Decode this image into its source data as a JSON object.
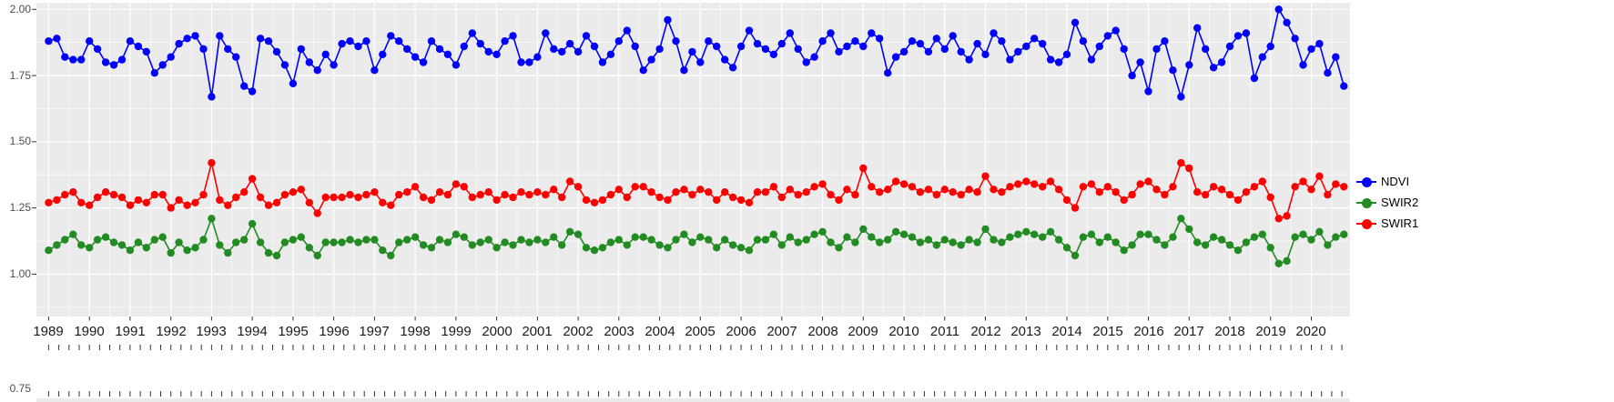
{
  "figure": {
    "background": "#FFFFFF",
    "panel_bg": "#EBEBEB",
    "grid_color": "#FFFFFF",
    "axis_tick_color": "#333333",
    "x_label_color": "#1A1A1A",
    "y_label_color": "#4D4D4D"
  },
  "legend": {
    "items": [
      {
        "label": "NDVI",
        "color": "#0000FF"
      },
      {
        "label": "SWIR2",
        "color": "#228B22"
      },
      {
        "label": "SWIR1",
        "color": "#FF0000"
      }
    ]
  },
  "axes": {
    "y_tick_labels_main": [
      "2.00",
      "1.75",
      "1.50",
      "1.25",
      "1.00"
    ],
    "y_tick_values_main": [
      2.0,
      1.75,
      1.5,
      1.25,
      1.0
    ],
    "y_minor_values_main": [
      1.875,
      1.625,
      1.375,
      1.125,
      0.875
    ],
    "y_tick_label_next_panel": "0.75"
  },
  "chart_data": {
    "type": "line",
    "markers": true,
    "title": "",
    "xlabel": "",
    "ylabel": "",
    "grid": true,
    "legend_position": "right",
    "x_tick_years": [
      1989,
      1990,
      1991,
      1992,
      1993,
      1994,
      1995,
      1996,
      1997,
      1998,
      1999,
      2000,
      2001,
      2002,
      2003,
      2004,
      2005,
      2006,
      2007,
      2008,
      2009,
      2010,
      2011,
      2012,
      2013,
      2014,
      2015,
      2016,
      2017,
      2018,
      2019,
      2020
    ],
    "x": {
      "start": 1989.0,
      "step": 0.2,
      "count": 160,
      "unit": "decimal_year"
    },
    "x_range_shown": [
      1988.7,
      2020.95
    ],
    "y_range_shown": [
      0.84,
      2.025
    ],
    "series": [
      {
        "name": "NDVI",
        "color": "#0000FF",
        "values": [
          1.88,
          1.89,
          1.82,
          1.81,
          1.81,
          1.88,
          1.85,
          1.8,
          1.79,
          1.81,
          1.88,
          1.86,
          1.84,
          1.76,
          1.79,
          1.82,
          1.87,
          1.89,
          1.9,
          1.85,
          1.67,
          1.9,
          1.85,
          1.82,
          1.71,
          1.69,
          1.89,
          1.88,
          1.84,
          1.79,
          1.72,
          1.85,
          1.8,
          1.77,
          1.83,
          1.79,
          1.87,
          1.88,
          1.86,
          1.88,
          1.77,
          1.83,
          1.9,
          1.88,
          1.85,
          1.82,
          1.8,
          1.88,
          1.85,
          1.83,
          1.79,
          1.86,
          1.91,
          1.87,
          1.84,
          1.83,
          1.88,
          1.9,
          1.8,
          1.8,
          1.82,
          1.91,
          1.85,
          1.84,
          1.87,
          1.84,
          1.9,
          1.86,
          1.8,
          1.83,
          1.88,
          1.92,
          1.86,
          1.77,
          1.81,
          1.85,
          1.96,
          1.88,
          1.77,
          1.84,
          1.8,
          1.88,
          1.86,
          1.81,
          1.78,
          1.86,
          1.92,
          1.87,
          1.85,
          1.83,
          1.87,
          1.91,
          1.85,
          1.8,
          1.82,
          1.88,
          1.91,
          1.84,
          1.86,
          1.88,
          1.86,
          1.91,
          1.89,
          1.76,
          1.82,
          1.84,
          1.88,
          1.87,
          1.84,
          1.89,
          1.85,
          1.9,
          1.84,
          1.81,
          1.87,
          1.83,
          1.91,
          1.88,
          1.81,
          1.84,
          1.86,
          1.89,
          1.87,
          1.81,
          1.8,
          1.83,
          1.95,
          1.88,
          1.81,
          1.86,
          1.9,
          1.92,
          1.85,
          1.75,
          1.8,
          1.69,
          1.85,
          1.88,
          1.77,
          1.67,
          1.79,
          1.93,
          1.85,
          1.78,
          1.8,
          1.86,
          1.9,
          1.91,
          1.74,
          1.82,
          1.86,
          2.0,
          1.95,
          1.89,
          1.79,
          1.85,
          1.87,
          1.76,
          1.82,
          1.71
        ]
      },
      {
        "name": "SWIR2",
        "color": "#228B22",
        "values": [
          1.09,
          1.11,
          1.13,
          1.15,
          1.11,
          1.1,
          1.13,
          1.14,
          1.12,
          1.11,
          1.09,
          1.12,
          1.1,
          1.13,
          1.14,
          1.08,
          1.12,
          1.09,
          1.1,
          1.13,
          1.21,
          1.11,
          1.08,
          1.12,
          1.13,
          1.19,
          1.12,
          1.08,
          1.07,
          1.12,
          1.13,
          1.14,
          1.1,
          1.07,
          1.12,
          1.12,
          1.12,
          1.13,
          1.12,
          1.13,
          1.13,
          1.09,
          1.07,
          1.12,
          1.13,
          1.14,
          1.11,
          1.1,
          1.13,
          1.12,
          1.15,
          1.14,
          1.11,
          1.12,
          1.13,
          1.1,
          1.12,
          1.11,
          1.13,
          1.12,
          1.13,
          1.12,
          1.14,
          1.11,
          1.16,
          1.15,
          1.1,
          1.09,
          1.1,
          1.12,
          1.13,
          1.11,
          1.14,
          1.14,
          1.13,
          1.11,
          1.1,
          1.13,
          1.15,
          1.12,
          1.14,
          1.13,
          1.1,
          1.13,
          1.11,
          1.1,
          1.09,
          1.13,
          1.13,
          1.15,
          1.11,
          1.14,
          1.12,
          1.13,
          1.15,
          1.16,
          1.12,
          1.1,
          1.14,
          1.12,
          1.17,
          1.14,
          1.12,
          1.13,
          1.16,
          1.15,
          1.14,
          1.12,
          1.13,
          1.11,
          1.13,
          1.12,
          1.11,
          1.13,
          1.12,
          1.17,
          1.13,
          1.12,
          1.14,
          1.15,
          1.16,
          1.15,
          1.14,
          1.16,
          1.13,
          1.1,
          1.07,
          1.14,
          1.15,
          1.12,
          1.14,
          1.12,
          1.09,
          1.11,
          1.15,
          1.15,
          1.13,
          1.11,
          1.14,
          1.21,
          1.17,
          1.12,
          1.11,
          1.14,
          1.13,
          1.11,
          1.09,
          1.12,
          1.14,
          1.15,
          1.1,
          1.04,
          1.05,
          1.14,
          1.15,
          1.13,
          1.16,
          1.11,
          1.14,
          1.15
        ]
      },
      {
        "name": "SWIR1",
        "color": "#FF0000",
        "values": [
          1.27,
          1.28,
          1.3,
          1.31,
          1.27,
          1.26,
          1.29,
          1.31,
          1.3,
          1.29,
          1.26,
          1.28,
          1.27,
          1.3,
          1.3,
          1.25,
          1.28,
          1.26,
          1.27,
          1.3,
          1.42,
          1.28,
          1.26,
          1.29,
          1.31,
          1.36,
          1.29,
          1.26,
          1.27,
          1.3,
          1.31,
          1.32,
          1.27,
          1.23,
          1.29,
          1.29,
          1.29,
          1.3,
          1.29,
          1.3,
          1.31,
          1.27,
          1.26,
          1.3,
          1.31,
          1.33,
          1.29,
          1.28,
          1.31,
          1.3,
          1.34,
          1.33,
          1.29,
          1.3,
          1.31,
          1.28,
          1.3,
          1.29,
          1.31,
          1.3,
          1.31,
          1.3,
          1.32,
          1.29,
          1.35,
          1.33,
          1.28,
          1.27,
          1.28,
          1.3,
          1.32,
          1.29,
          1.33,
          1.33,
          1.31,
          1.29,
          1.28,
          1.31,
          1.32,
          1.3,
          1.32,
          1.31,
          1.28,
          1.31,
          1.29,
          1.28,
          1.27,
          1.31,
          1.31,
          1.33,
          1.29,
          1.32,
          1.3,
          1.31,
          1.33,
          1.34,
          1.3,
          1.28,
          1.32,
          1.3,
          1.4,
          1.33,
          1.31,
          1.32,
          1.35,
          1.34,
          1.33,
          1.31,
          1.32,
          1.3,
          1.32,
          1.31,
          1.3,
          1.32,
          1.31,
          1.37,
          1.32,
          1.31,
          1.33,
          1.34,
          1.35,
          1.34,
          1.33,
          1.35,
          1.32,
          1.28,
          1.25,
          1.33,
          1.34,
          1.31,
          1.33,
          1.31,
          1.28,
          1.3,
          1.34,
          1.35,
          1.32,
          1.3,
          1.33,
          1.42,
          1.4,
          1.31,
          1.3,
          1.33,
          1.32,
          1.3,
          1.28,
          1.31,
          1.33,
          1.35,
          1.29,
          1.21,
          1.22,
          1.33,
          1.35,
          1.32,
          1.37,
          1.3,
          1.34,
          1.33
        ]
      }
    ]
  }
}
